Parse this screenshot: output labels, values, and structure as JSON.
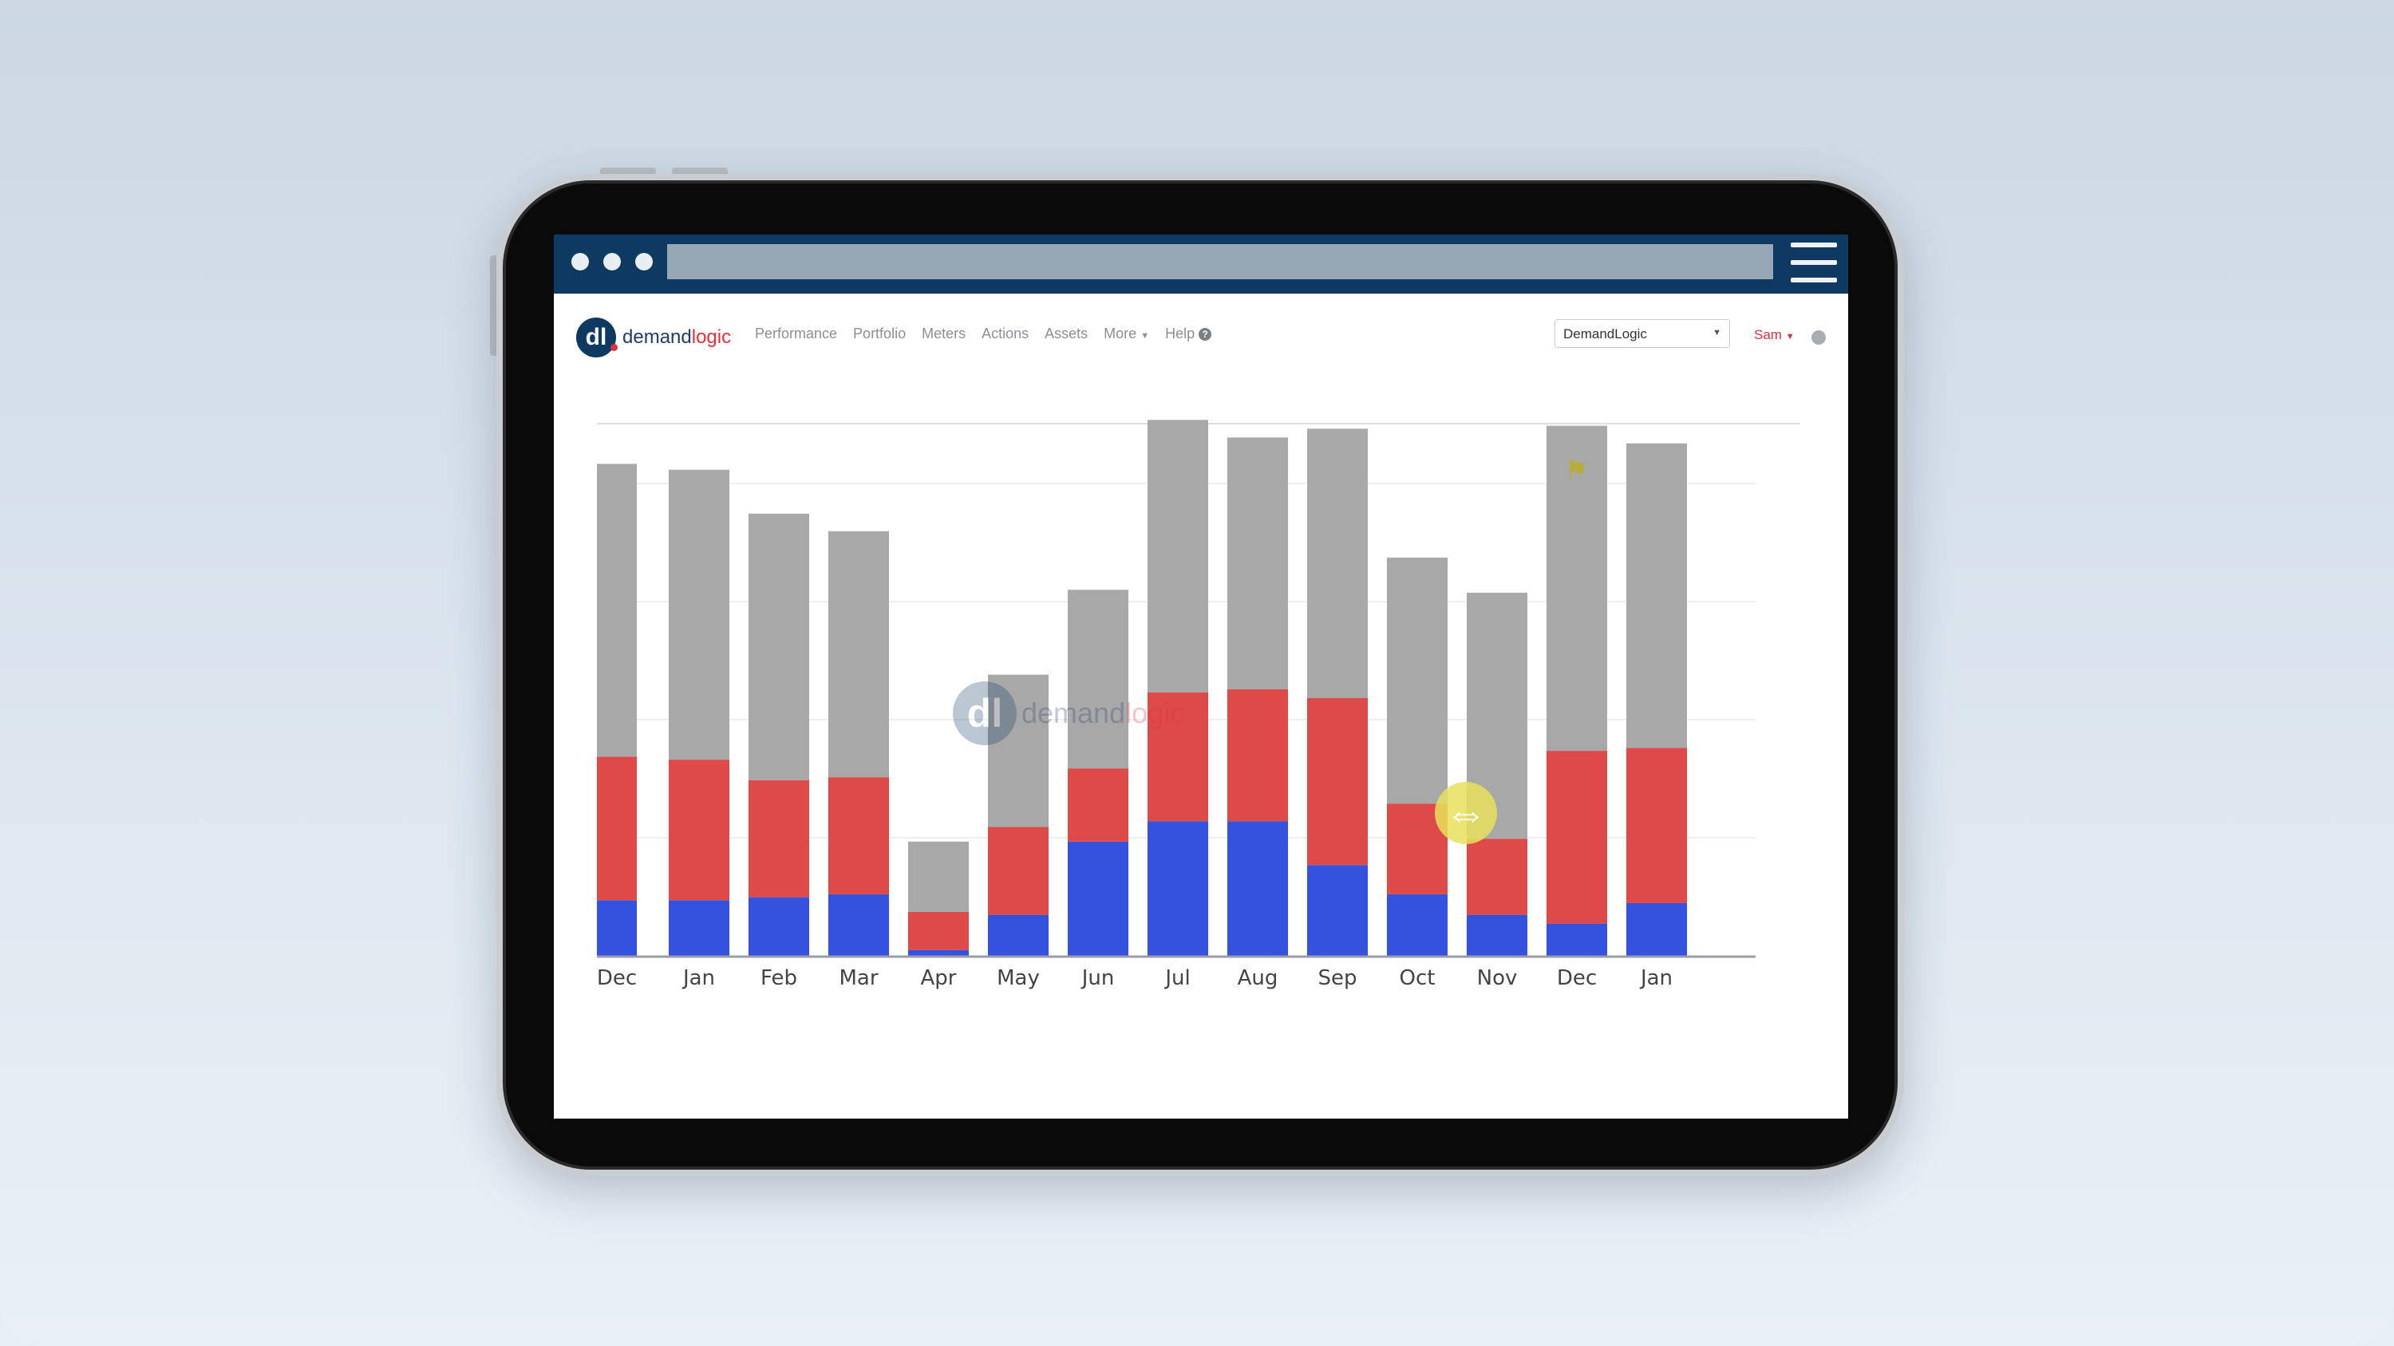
{
  "nav": {
    "brand_main": "demand",
    "brand_accent": "logic",
    "items": [
      "Performance",
      "Portfolio",
      "Meters",
      "Actions",
      "Assets",
      "More",
      "Help"
    ],
    "site_select": "DemandLogic",
    "user": "Sam"
  },
  "watermark": {
    "main": "demand",
    "accent": "logic"
  },
  "colors": {
    "gray": "#a8a8a8",
    "red": "#de4a4a",
    "blue": "#3552de",
    "frame": "#0e3a62"
  },
  "icons": [
    "hamburger-icon",
    "caret-down-icon",
    "help-icon",
    "user-settings-icon",
    "flag-icon",
    "resize-handle-icon"
  ],
  "chart_data": {
    "type": "bar",
    "stacked": true,
    "categories": [
      "Dec",
      "Jan",
      "Feb",
      "Mar",
      "Apr",
      "May",
      "Jun",
      "Jul",
      "Aug",
      "Sep",
      "Oct",
      "Nov",
      "Dec",
      "Jan"
    ],
    "series": [
      {
        "values": [
          19,
          19,
          20,
          21,
          2,
          14,
          39,
          46,
          46,
          31,
          21,
          14,
          11,
          18
        ],
        "color": "#3552de"
      },
      {
        "values": [
          49,
          48,
          40,
          40,
          13,
          30,
          25,
          44,
          45,
          57,
          31,
          26,
          59,
          53
        ],
        "color": "#de4a4a"
      },
      {
        "values": [
          100,
          99,
          91,
          84,
          24,
          52,
          61,
          93,
          86,
          92,
          84,
          84,
          111,
          104
        ],
        "color": "#a8a8a8"
      }
    ],
    "ylim": [
      0,
      182
    ],
    "grid": true
  }
}
